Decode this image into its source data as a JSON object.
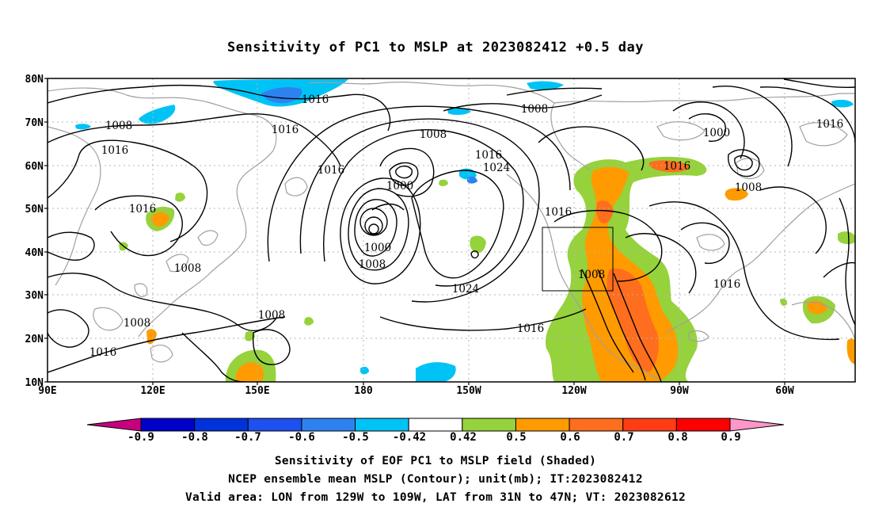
{
  "title": "Sensitivity of PC1 to MSLP at 2023082412 +0.5 day",
  "lat_labels": [
    "80N",
    "70N",
    "60N",
    "50N",
    "40N",
    "30N",
    "20N",
    "10N"
  ],
  "lon_labels": [
    "90E",
    "120E",
    "150E",
    "180",
    "150W",
    "120W",
    "90W",
    "60W"
  ],
  "contour_labels": [
    "1016",
    "1016",
    "1008",
    "1008",
    "1016",
    "1016",
    "1016",
    "1008",
    "1016",
    "1024",
    "1000",
    "1000",
    "1016",
    "1016",
    "1016",
    "1008",
    "1000",
    "1008",
    "1008",
    "1024",
    "1016",
    "1016",
    "1008",
    "1008",
    "1008",
    "1016"
  ],
  "colorbar": {
    "colors": [
      "#c8007f",
      "#0000c8",
      "#0032dc",
      "#1e50f0",
      "#2d82f0",
      "#00c3f5",
      "#ffffff",
      "#96d23c",
      "#ff9b00",
      "#ff6e1e",
      "#ff3c14",
      "#ff0000",
      "#ff96c8"
    ],
    "labels": [
      "-0.9",
      "-0.8",
      "-0.7",
      "-0.6",
      "-0.5",
      "-0.42",
      "0.42",
      "0.5",
      "0.6",
      "0.7",
      "0.8",
      "0.9"
    ]
  },
  "captions": {
    "line1": "Sensitivity of EOF PC1 to MSLP field (Shaded)",
    "line2": "NCEP ensemble mean MSLP (Contour); unit(mb); IT:2023082412",
    "line3": "Valid area: LON from 129W to 109W, LAT from 31N to 47N; VT: 2023082612"
  },
  "colors": {
    "coast": "#a0a0a0",
    "contour": "#000000",
    "grid": "#b4b4b4",
    "green": "#96d23c",
    "orange": "#ff9b00",
    "darkorange": "#ff6e1e",
    "cyan": "#00c3f5",
    "blue": "#2d82f0"
  }
}
